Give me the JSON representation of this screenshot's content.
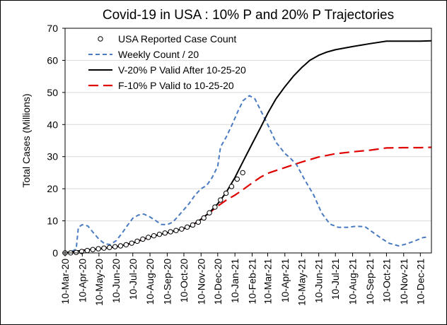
{
  "chart_data": {
    "type": "line",
    "title": "Covid-19 in USA  : 10% P and 20% P Trajectories",
    "ylabel": "Total Cases (Millions)",
    "xlabel": "",
    "x_unit": "date",
    "xlim": [
      "2020-03-10",
      "2021-12-30"
    ],
    "ylim": [
      0,
      70
    ],
    "yticks": [
      0,
      10,
      20,
      30,
      40,
      50,
      60,
      70
    ],
    "xticks": [
      "2020-03-10",
      "2020-04-10",
      "2020-05-10",
      "2020-06-10",
      "2020-07-10",
      "2020-08-10",
      "2020-09-10",
      "2020-10-10",
      "2020-11-10",
      "2020-12-10",
      "2021-01-10",
      "2021-02-10",
      "2021-03-10",
      "2021-04-10",
      "2021-05-10",
      "2021-06-10",
      "2021-07-10",
      "2021-08-10",
      "2021-09-10",
      "2021-10-10",
      "2021-11-10",
      "2021-12-10"
    ],
    "xtick_labels": [
      "10-Mar-20",
      "10-Apr-20",
      "10-May-20",
      "10-Jun-20",
      "10-Jul-20",
      "10-Aug-20",
      "10-Sep-20",
      "10-Oct-20",
      "10-Nov-20",
      "10-Dec-20",
      "10-Jan-21",
      "10-Feb-21",
      "10-Mar-21",
      "10-Apr-21",
      "10-May-21",
      "10-Jun-21",
      "10-Jul-21",
      "10-Aug-21",
      "10-Sep-21",
      "10-Oct-21",
      "10-Nov-21",
      "10-Dec-21"
    ],
    "grid": "horizontal",
    "legend_position": "top-left",
    "series": [
      {
        "name": "USA Reported Case Count",
        "style": "markers",
        "color": "#000000",
        "points": [
          [
            "2020-03-10",
            0.0
          ],
          [
            "2020-03-20",
            0.02
          ],
          [
            "2020-03-30",
            0.15
          ],
          [
            "2020-04-09",
            0.45
          ],
          [
            "2020-04-19",
            0.75
          ],
          [
            "2020-04-29",
            1.05
          ],
          [
            "2020-05-09",
            1.3
          ],
          [
            "2020-05-19",
            1.5
          ],
          [
            "2020-05-29",
            1.7
          ],
          [
            "2020-06-08",
            1.95
          ],
          [
            "2020-06-18",
            2.2
          ],
          [
            "2020-06-28",
            2.55
          ],
          [
            "2020-07-08",
            3.05
          ],
          [
            "2020-07-18",
            3.65
          ],
          [
            "2020-07-28",
            4.3
          ],
          [
            "2020-08-07",
            4.85
          ],
          [
            "2020-08-17",
            5.35
          ],
          [
            "2020-08-27",
            5.8
          ],
          [
            "2020-09-06",
            6.2
          ],
          [
            "2020-09-16",
            6.6
          ],
          [
            "2020-09-26",
            7.0
          ],
          [
            "2020-10-06",
            7.45
          ],
          [
            "2020-10-16",
            8.05
          ],
          [
            "2020-10-26",
            8.7
          ],
          [
            "2020-11-05",
            9.6
          ],
          [
            "2020-11-15",
            10.9
          ],
          [
            "2020-11-25",
            12.5
          ],
          [
            "2020-12-05",
            14.3
          ],
          [
            "2020-12-15",
            16.5
          ],
          [
            "2020-12-25",
            18.6
          ],
          [
            "2021-01-04",
            20.7
          ],
          [
            "2021-01-14",
            23.0
          ],
          [
            "2021-01-24",
            25.0
          ]
        ]
      },
      {
        "name": "Weekly Count / 20",
        "style": "dashed",
        "color": "#4a7bc0",
        "points": [
          [
            "2020-03-10",
            0.0
          ],
          [
            "2020-03-20",
            0.3
          ],
          [
            "2020-03-30",
            1.2
          ],
          [
            "2020-04-03",
            8.0
          ],
          [
            "2020-04-10",
            8.8
          ],
          [
            "2020-04-20",
            8.4
          ],
          [
            "2020-04-30",
            6.3
          ],
          [
            "2020-05-10",
            4.3
          ],
          [
            "2020-05-20",
            2.9
          ],
          [
            "2020-05-30",
            2.6
          ],
          [
            "2020-06-10",
            3.8
          ],
          [
            "2020-06-20",
            6.0
          ],
          [
            "2020-06-30",
            8.5
          ],
          [
            "2020-07-10",
            10.8
          ],
          [
            "2020-07-20",
            11.8
          ],
          [
            "2020-07-30",
            12.1
          ],
          [
            "2020-08-10",
            11.2
          ],
          [
            "2020-08-20",
            10.1
          ],
          [
            "2020-08-30",
            8.9
          ],
          [
            "2020-09-10",
            8.8
          ],
          [
            "2020-09-20",
            9.6
          ],
          [
            "2020-09-30",
            11.5
          ],
          [
            "2020-10-10",
            13.5
          ],
          [
            "2020-10-20",
            15.5
          ],
          [
            "2020-10-30",
            18.0
          ],
          [
            "2020-11-10",
            20.0
          ],
          [
            "2020-11-20",
            21.0
          ],
          [
            "2020-11-30",
            23.5
          ],
          [
            "2020-12-10",
            27.0
          ],
          [
            "2020-12-15",
            33.0
          ],
          [
            "2020-12-25",
            36.0
          ],
          [
            "2021-01-05",
            40.0
          ],
          [
            "2021-01-15",
            44.0
          ],
          [
            "2021-01-25",
            47.5
          ],
          [
            "2021-02-05",
            49.0
          ],
          [
            "2021-02-15",
            48.0
          ],
          [
            "2021-02-25",
            44.5
          ],
          [
            "2021-03-10",
            40.0
          ],
          [
            "2021-03-25",
            34.5
          ],
          [
            "2021-04-10",
            31.0
          ],
          [
            "2021-04-20",
            29.5
          ],
          [
            "2021-05-01",
            27.5
          ],
          [
            "2021-05-15",
            23.0
          ],
          [
            "2021-06-01",
            18.0
          ],
          [
            "2021-06-15",
            12.5
          ],
          [
            "2021-06-30",
            9.0
          ],
          [
            "2021-07-15",
            8.0
          ],
          [
            "2021-08-01",
            8.0
          ],
          [
            "2021-08-15",
            8.3
          ],
          [
            "2021-09-01",
            8.2
          ],
          [
            "2021-09-15",
            6.5
          ],
          [
            "2021-10-01",
            4.5
          ],
          [
            "2021-10-15",
            3.0
          ],
          [
            "2021-11-01",
            2.2
          ],
          [
            "2021-11-15",
            2.8
          ],
          [
            "2021-12-01",
            3.8
          ],
          [
            "2021-12-15",
            4.8
          ],
          [
            "2021-12-25",
            5.0
          ]
        ]
      },
      {
        "name": "V-20% P Valid After 10-25-20",
        "style": "solid",
        "color": "#000000",
        "points": [
          [
            "2020-03-10",
            0.0
          ],
          [
            "2020-04-10",
            0.8
          ],
          [
            "2020-05-10",
            1.3
          ],
          [
            "2020-06-10",
            1.9
          ],
          [
            "2020-07-10",
            3.1
          ],
          [
            "2020-08-10",
            5.0
          ],
          [
            "2020-09-10",
            6.3
          ],
          [
            "2020-10-10",
            7.6
          ],
          [
            "2020-10-25",
            8.6
          ],
          [
            "2020-11-10",
            10.5
          ],
          [
            "2020-11-25",
            12.6
          ],
          [
            "2020-12-10",
            15.3
          ],
          [
            "2020-12-25",
            18.8
          ],
          [
            "2021-01-10",
            23.5
          ],
          [
            "2021-01-25",
            28.6
          ],
          [
            "2021-02-10",
            34.0
          ],
          [
            "2021-02-25",
            39.0
          ],
          [
            "2021-03-10",
            43.5
          ],
          [
            "2021-03-25",
            48.0
          ],
          [
            "2021-04-10",
            51.8
          ],
          [
            "2021-04-25",
            55.0
          ],
          [
            "2021-05-10",
            57.7
          ],
          [
            "2021-05-25",
            60.0
          ],
          [
            "2021-06-10",
            61.6
          ],
          [
            "2021-06-25",
            62.6
          ],
          [
            "2021-07-10",
            63.3
          ],
          [
            "2021-08-10",
            64.3
          ],
          [
            "2021-09-10",
            65.2
          ],
          [
            "2021-10-10",
            66.0
          ],
          [
            "2021-11-10",
            66.0
          ],
          [
            "2021-12-10",
            66.0
          ],
          [
            "2021-12-30",
            66.1
          ]
        ]
      },
      {
        "name": "F-10% P Valid to 10-25-20",
        "style": "long-dashed",
        "color": "#e00000",
        "points": [
          [
            "2020-03-10",
            0.0
          ],
          [
            "2020-04-10",
            0.8
          ],
          [
            "2020-05-10",
            1.3
          ],
          [
            "2020-06-10",
            1.9
          ],
          [
            "2020-07-10",
            3.1
          ],
          [
            "2020-08-10",
            5.0
          ],
          [
            "2020-09-10",
            6.3
          ],
          [
            "2020-10-10",
            7.6
          ],
          [
            "2020-10-25",
            8.6
          ],
          [
            "2020-11-10",
            10.5
          ],
          [
            "2020-11-25",
            12.5
          ],
          [
            "2020-12-10",
            14.6
          ],
          [
            "2020-12-25",
            16.4
          ],
          [
            "2021-01-10",
            18.0
          ],
          [
            "2021-01-25",
            19.8
          ],
          [
            "2021-02-10",
            21.8
          ],
          [
            "2021-02-25",
            23.6
          ],
          [
            "2021-03-10",
            24.8
          ],
          [
            "2021-04-10",
            26.6
          ],
          [
            "2021-05-10",
            28.3
          ],
          [
            "2021-06-10",
            29.9
          ],
          [
            "2021-07-10",
            30.9
          ],
          [
            "2021-08-10",
            31.5
          ],
          [
            "2021-09-10",
            32.0
          ],
          [
            "2021-10-10",
            32.7
          ],
          [
            "2021-11-10",
            32.8
          ],
          [
            "2021-12-10",
            32.8
          ],
          [
            "2021-12-30",
            32.9
          ]
        ]
      }
    ]
  }
}
